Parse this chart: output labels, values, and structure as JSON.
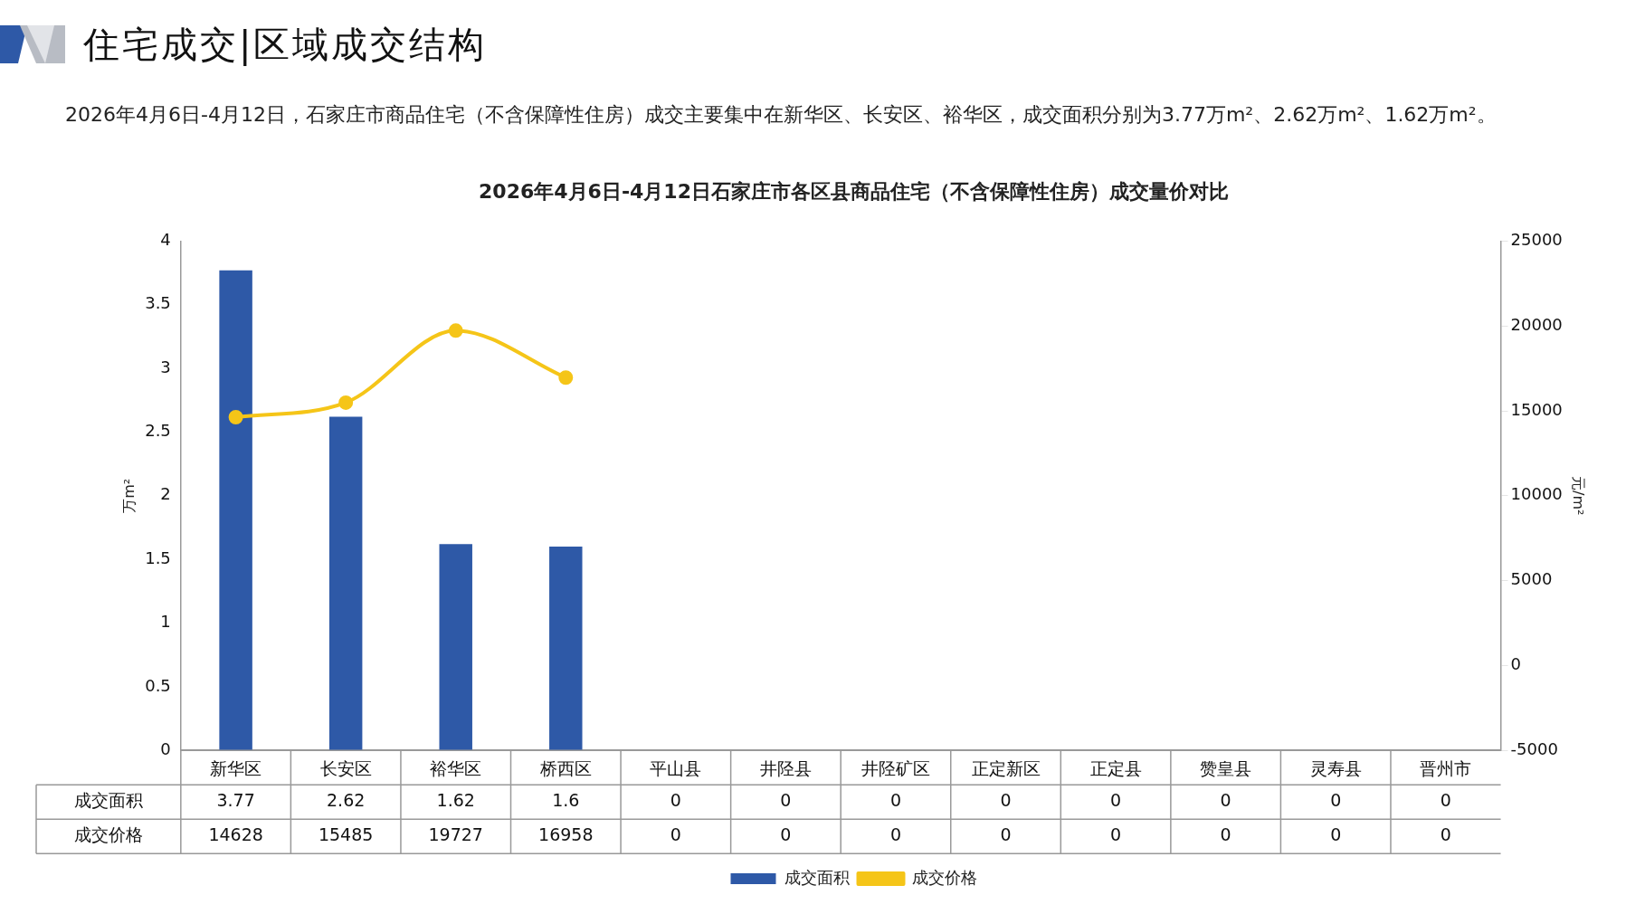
{
  "chart_data": {
    "type": "bar",
    "title": "2026年4月6日-4月12日石家庄市各区县商品住宅（不含保障性住房）成交量价对比",
    "annotations": [
      "住宅成交|区域成交结构",
      "2026年4月6日-4月12日，石家庄市商品住宅（不含保障性住房）成交主要集中在新华区、长安区、裕华区，成交面积分别为3.77万m²、2.62万m²、1.62万m²。"
    ],
    "ylabel": "万m²",
    "y2label": "元/m²",
    "categories": [
      "新华区",
      "长安区",
      "裕华区",
      "桥西区",
      "平山县",
      "井陉县",
      "井陉矿区",
      "正定新区",
      "正定县",
      "赞皇县",
      "灵寿县",
      "晋州市"
    ],
    "series": [
      {
        "name": "成交面积",
        "color": "#2e59a7",
        "values": [
          3.77,
          2.62,
          1.62,
          1.6,
          0,
          0,
          0,
          0,
          0,
          0,
          0,
          0
        ],
        "value_labels": [
          "3.77",
          "2.62",
          "1.62",
          "1.6",
          "0",
          "0",
          "0",
          "0",
          "0",
          "0",
          "0",
          "0"
        ]
      },
      {
        "name": "成交价格",
        "type": "line",
        "axis": "y2",
        "color": "#f5c518",
        "marker": "circle",
        "values": [
          14628,
          15485,
          19727,
          16958,
          null,
          null,
          null,
          null,
          null,
          null,
          null,
          null
        ],
        "value_labels": [
          "14628",
          "15485",
          "19727",
          "16958",
          "0",
          "0",
          "0",
          "0",
          "0",
          "0",
          "0",
          "0"
        ]
      }
    ],
    "ylim": [
      0,
      4
    ],
    "yticks": [
      0,
      0.5,
      1,
      1.5,
      2,
      2.5,
      3,
      3.5,
      4
    ],
    "y2lim": [
      -5000,
      25000
    ],
    "y2ticks": [
      -5000,
      0,
      5000,
      10000,
      15000,
      20000,
      25000
    ],
    "grid": false,
    "legend": "bottom"
  }
}
